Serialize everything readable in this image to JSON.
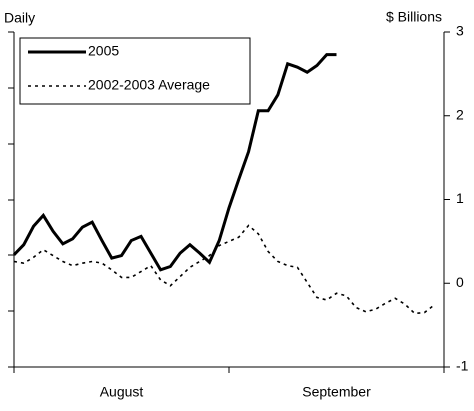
{
  "chart_data": {
    "type": "line",
    "left_label": "Daily",
    "right_label": "$ Billions",
    "months": [
      "August",
      "September"
    ],
    "categories": [
      null,
      null,
      null,
      null,
      null,
      null,
      null,
      null,
      null,
      null,
      null,
      null,
      null,
      null,
      null,
      null,
      null,
      null,
      null,
      null,
      null,
      null,
      null,
      null,
      null,
      null,
      null,
      null,
      null,
      null,
      null,
      null,
      null,
      null,
      null,
      null,
      null,
      null,
      null,
      null,
      null,
      null,
      null,
      null
    ],
    "series": [
      {
        "name": "2005",
        "color": "#000000",
        "dash": "solid",
        "values": [
          0.34,
          0.46,
          0.68,
          0.81,
          0.62,
          0.47,
          0.53,
          0.67,
          0.73,
          0.51,
          0.3,
          0.33,
          0.51,
          0.56,
          0.36,
          0.16,
          0.2,
          0.36,
          0.46,
          0.36,
          0.25,
          0.51,
          0.9,
          1.24,
          1.57,
          2.06,
          2.06,
          2.25,
          2.62,
          2.58,
          2.52,
          2.6,
          2.73,
          2.73,
          null,
          null,
          null,
          null,
          null,
          null,
          null,
          null,
          null,
          null
        ]
      },
      {
        "name": "2002-2003 Average",
        "color": "#000000",
        "dash": "dotted",
        "values": [
          0.26,
          0.24,
          0.31,
          0.4,
          0.33,
          0.26,
          0.21,
          0.24,
          0.26,
          0.24,
          0.16,
          0.07,
          0.07,
          0.14,
          0.21,
          0.04,
          -0.03,
          0.08,
          0.19,
          0.26,
          0.33,
          0.45,
          0.5,
          0.55,
          0.69,
          0.59,
          0.38,
          0.26,
          0.21,
          0.19,
          0.01,
          -0.17,
          -0.2,
          -0.12,
          -0.15,
          -0.29,
          -0.34,
          -0.31,
          -0.24,
          -0.18,
          -0.25,
          -0.36,
          -0.35,
          -0.26
        ]
      }
    ],
    "y2lim": [
      -1,
      3
    ],
    "y2ticks": [
      -1,
      0,
      1,
      2,
      3
    ],
    "legend": "top-left"
  }
}
